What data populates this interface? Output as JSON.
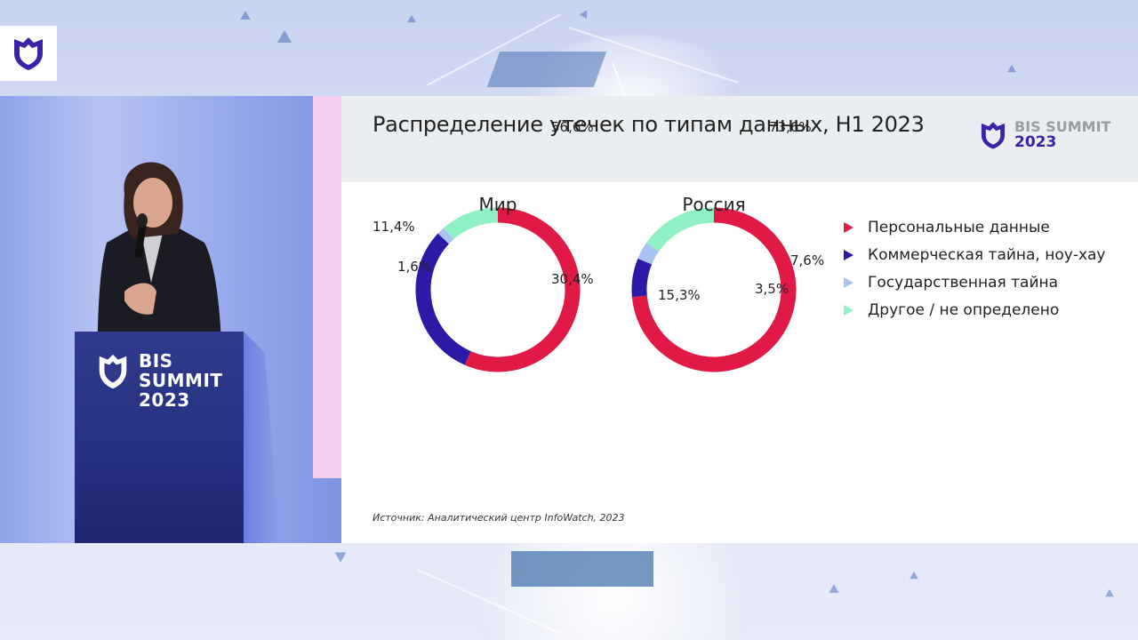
{
  "slide": {
    "title": "Распределение утечек по типам данных, H1 2023",
    "brand": {
      "line1": "BIS SUMMIT",
      "line2": "2023"
    },
    "source": "Источник: Аналитический центр InfoWatch, 2023"
  },
  "podium": {
    "line1": "BIS",
    "line2": "SUMMIT",
    "line3": "2023"
  },
  "colors": {
    "personal": "#e11a45",
    "commercial": "#2a1aa6",
    "state": "#a9c3f0",
    "other": "#8ff0c3"
  },
  "chart_data": [
    {
      "type": "pie",
      "donut": true,
      "center_label": "Мир",
      "categories": [
        "Персональные данные",
        "Коммерческая тайна, ноу-хау",
        "Государственная тайна",
        "Другое / не определено"
      ],
      "values": [
        56.6,
        30.4,
        1.6,
        11.4
      ],
      "value_labels": [
        "56,6%",
        "30,4%",
        "1,6%",
        "11,4%"
      ]
    },
    {
      "type": "pie",
      "donut": true,
      "center_label": "Россия",
      "categories": [
        "Персональные данные",
        "Коммерческая тайна, ноу-хау",
        "Государственная тайна",
        "Другое / не определено"
      ],
      "values": [
        73.6,
        7.6,
        3.5,
        15.3
      ],
      "value_labels": [
        "73,6%",
        "7,6%",
        "3,5%",
        "15,3%"
      ]
    }
  ],
  "legend": [
    {
      "label": "Персональные данные",
      "color_key": "personal"
    },
    {
      "label": "Коммерческая тайна, ноу-хау",
      "color_key": "commercial"
    },
    {
      "label": "Государственная тайна",
      "color_key": "state"
    },
    {
      "label": "Другое / не определено",
      "color_key": "other"
    }
  ]
}
